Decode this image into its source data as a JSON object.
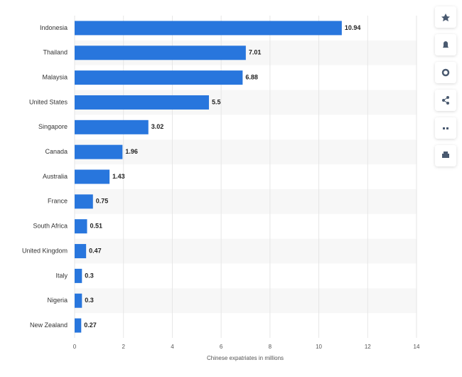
{
  "chart_data": {
    "type": "bar",
    "orientation": "horizontal",
    "x_label": "Chinese expatriates in millions",
    "categories": [
      "Indonesia",
      "Thailand",
      "Malaysia",
      "United States",
      "Singapore",
      "Canada",
      "Australia",
      "France",
      "South Africa",
      "United Kingdom",
      "Italy",
      "Nigeria",
      "New Zealand"
    ],
    "values": [
      10.94,
      7.01,
      6.88,
      5.5,
      3.02,
      1.96,
      1.43,
      0.75,
      0.51,
      0.47,
      0.3,
      0.3,
      0.27
    ],
    "color": "#2876dd",
    "xlim": [
      0,
      14
    ],
    "xticks": [
      0,
      2,
      4,
      6,
      8,
      10,
      12,
      14
    ],
    "grid": true
  }
}
